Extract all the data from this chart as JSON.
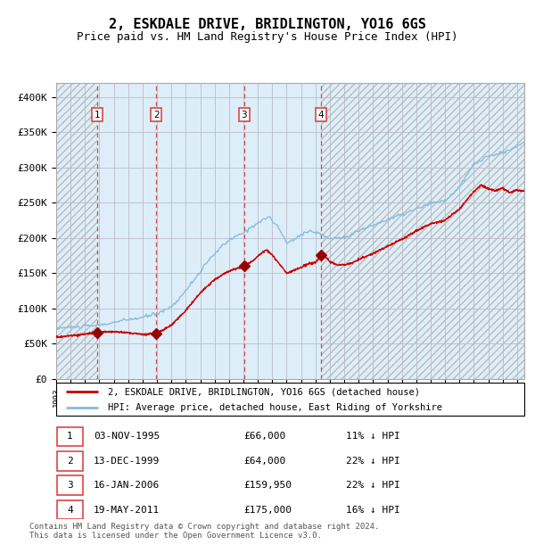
{
  "title": "2, ESKDALE DRIVE, BRIDLINGTON, YO16 6GS",
  "subtitle": "Price paid vs. HM Land Registry's House Price Index (HPI)",
  "title_fontsize": 11,
  "subtitle_fontsize": 9,
  "hpi_color": "#88bbdd",
  "price_color": "#cc0000",
  "marker_color": "#990000",
  "vline_color": "#dd4444",
  "background_color": "#ffffff",
  "chart_bg_color": "#ddeef8",
  "grid_color": "#bbbbcc",
  "hatch_color": "#bbbbbb",
  "ylim": [
    0,
    420000
  ],
  "yticks": [
    0,
    50000,
    100000,
    150000,
    200000,
    250000,
    300000,
    350000,
    400000
  ],
  "ytick_labels": [
    "£0",
    "£50K",
    "£100K",
    "£150K",
    "£200K",
    "£250K",
    "£300K",
    "£350K",
    "£400K"
  ],
  "xlim_start": 1993.0,
  "xlim_end": 2025.5,
  "purchases": [
    {
      "num": 1,
      "date": "03-NOV-1995",
      "year": 1995.84,
      "price": 66000,
      "pct": "11%"
    },
    {
      "num": 2,
      "date": "13-DEC-1999",
      "year": 1999.95,
      "price": 64000,
      "pct": "22%"
    },
    {
      "num": 3,
      "date": "16-JAN-2006",
      "year": 2006.04,
      "price": 159950,
      "pct": "22%"
    },
    {
      "num": 4,
      "date": "19-MAY-2011",
      "year": 2011.38,
      "price": 175000,
      "pct": "16%"
    }
  ],
  "legend_line1": "2, ESKDALE DRIVE, BRIDLINGTON, YO16 6GS (detached house)",
  "legend_line2": "HPI: Average price, detached house, East Riding of Yorkshire",
  "footer": "Contains HM Land Registry data © Crown copyright and database right 2024.\nThis data is licensed under the Open Government Licence v3.0.",
  "table_rows": [
    {
      "num": 1,
      "date": "03-NOV-1995",
      "price": "£66,000",
      "pct": "11% ↓ HPI"
    },
    {
      "num": 2,
      "date": "13-DEC-1999",
      "price": "£64,000",
      "pct": "22% ↓ HPI"
    },
    {
      "num": 3,
      "date": "16-JAN-2006",
      "price": "£159,950",
      "pct": "22% ↓ HPI"
    },
    {
      "num": 4,
      "date": "19-MAY-2011",
      "price": "£175,000",
      "pct": "16% ↓ HPI"
    }
  ]
}
